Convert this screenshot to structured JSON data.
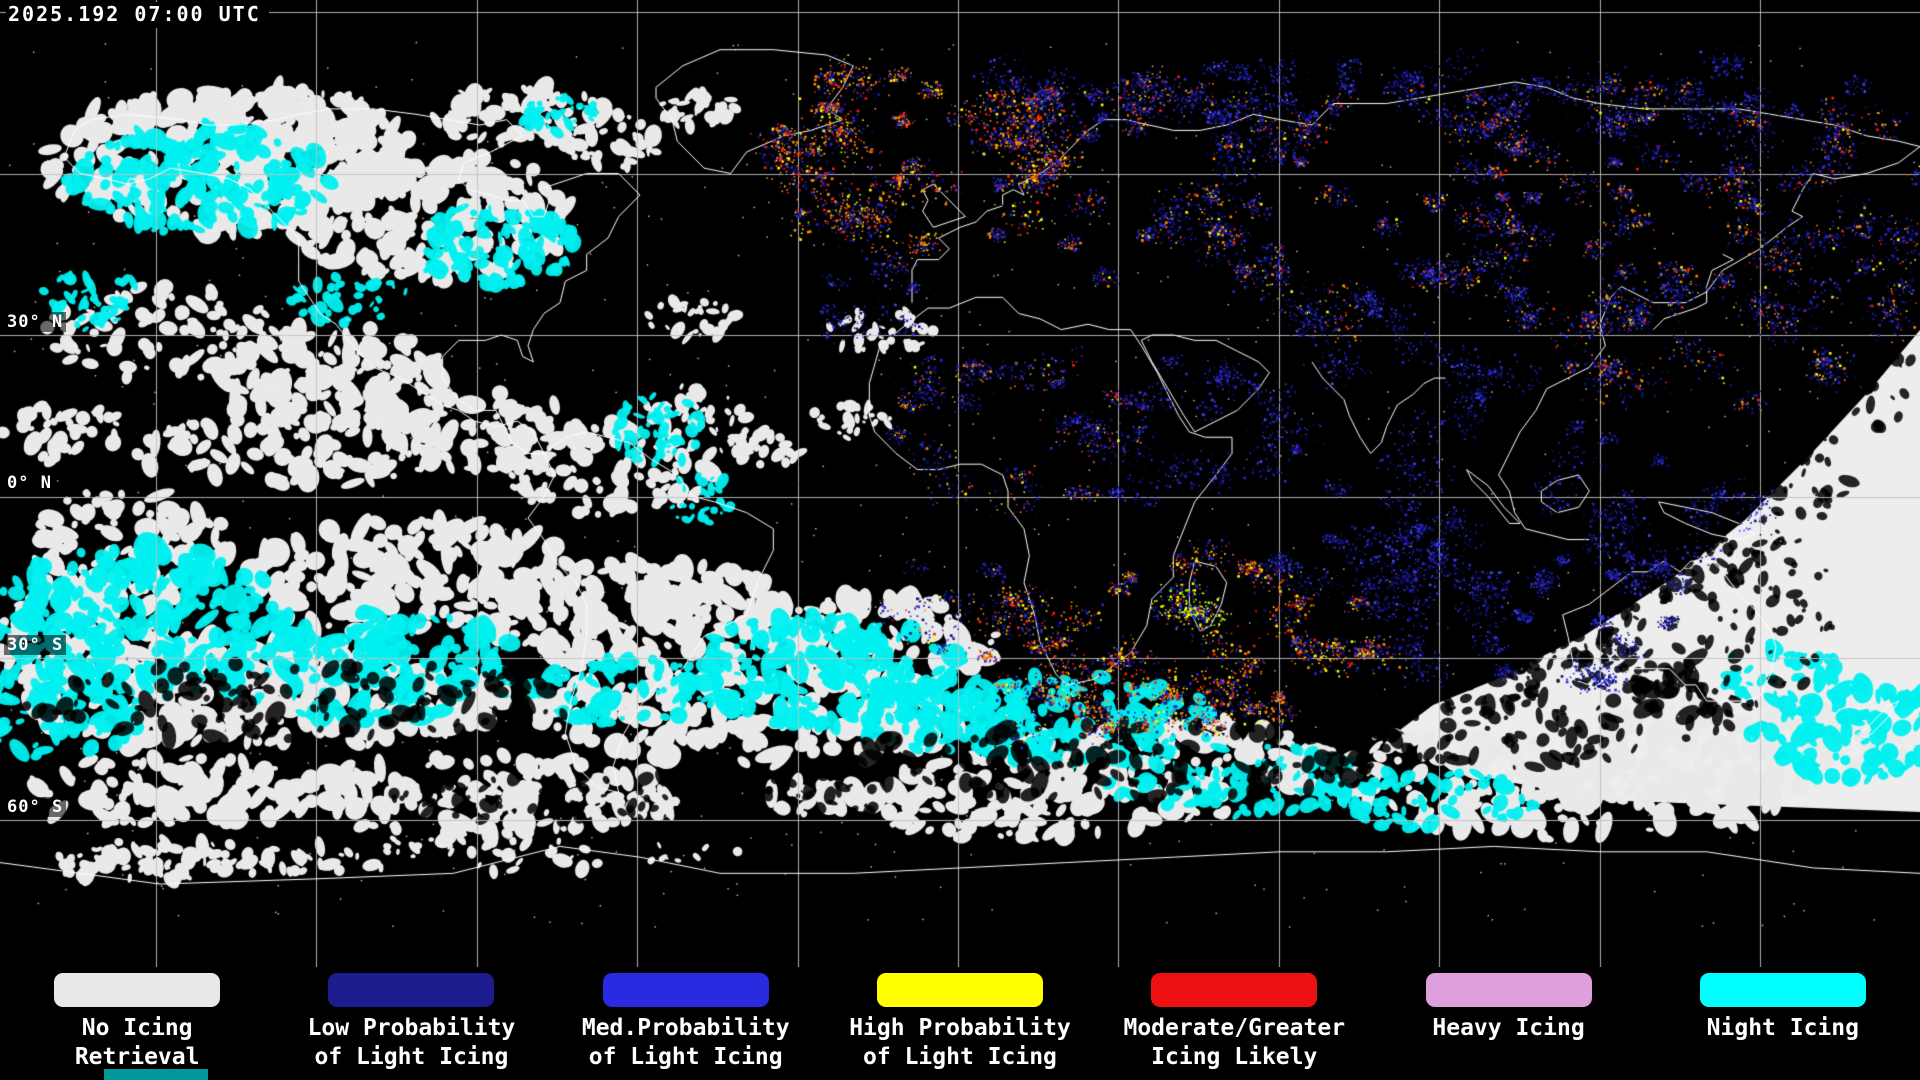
{
  "header": {
    "timestamp": "2025.192 07:00 UTC"
  },
  "map": {
    "latitude_labels": [
      {
        "text": "30° N"
      },
      {
        "text": "0° N"
      },
      {
        "text": "30° S"
      },
      {
        "text": "60° S"
      }
    ]
  },
  "legend": {
    "items": [
      {
        "line1": "No Icing",
        "line2": "Retrieval",
        "color": "#e8e8e8"
      },
      {
        "line1": "Low Probability",
        "line2": "of Light Icing",
        "color": "#1c1c8f"
      },
      {
        "line1": "Med.Probability",
        "line2": "of Light Icing",
        "color": "#2a2ae0"
      },
      {
        "line1": "High Probability",
        "line2": "of Light Icing",
        "color": "#ffff00"
      },
      {
        "line1": "Moderate/Greater",
        "line2": "Icing Likely",
        "color": "#ee1111"
      },
      {
        "line1": "Heavy Icing",
        "line2": "",
        "color": "#dda0dd"
      },
      {
        "line1": "Night Icing",
        "line2": "",
        "color": "#00ffff"
      }
    ]
  },
  "colors": {
    "background": "#000000",
    "grid": "#c0c0c0",
    "coastline": "#ffffff",
    "cloud": "#e9e9e9",
    "day_side": "#ededed",
    "night_icing": "#00f0f0",
    "low_prob": "#10106e",
    "med_prob": "#2a2ad0",
    "high_prob": "#ffff00",
    "moderate": "#ff2000",
    "orange": "#ff8a00",
    "footer_bar": "#009898"
  }
}
